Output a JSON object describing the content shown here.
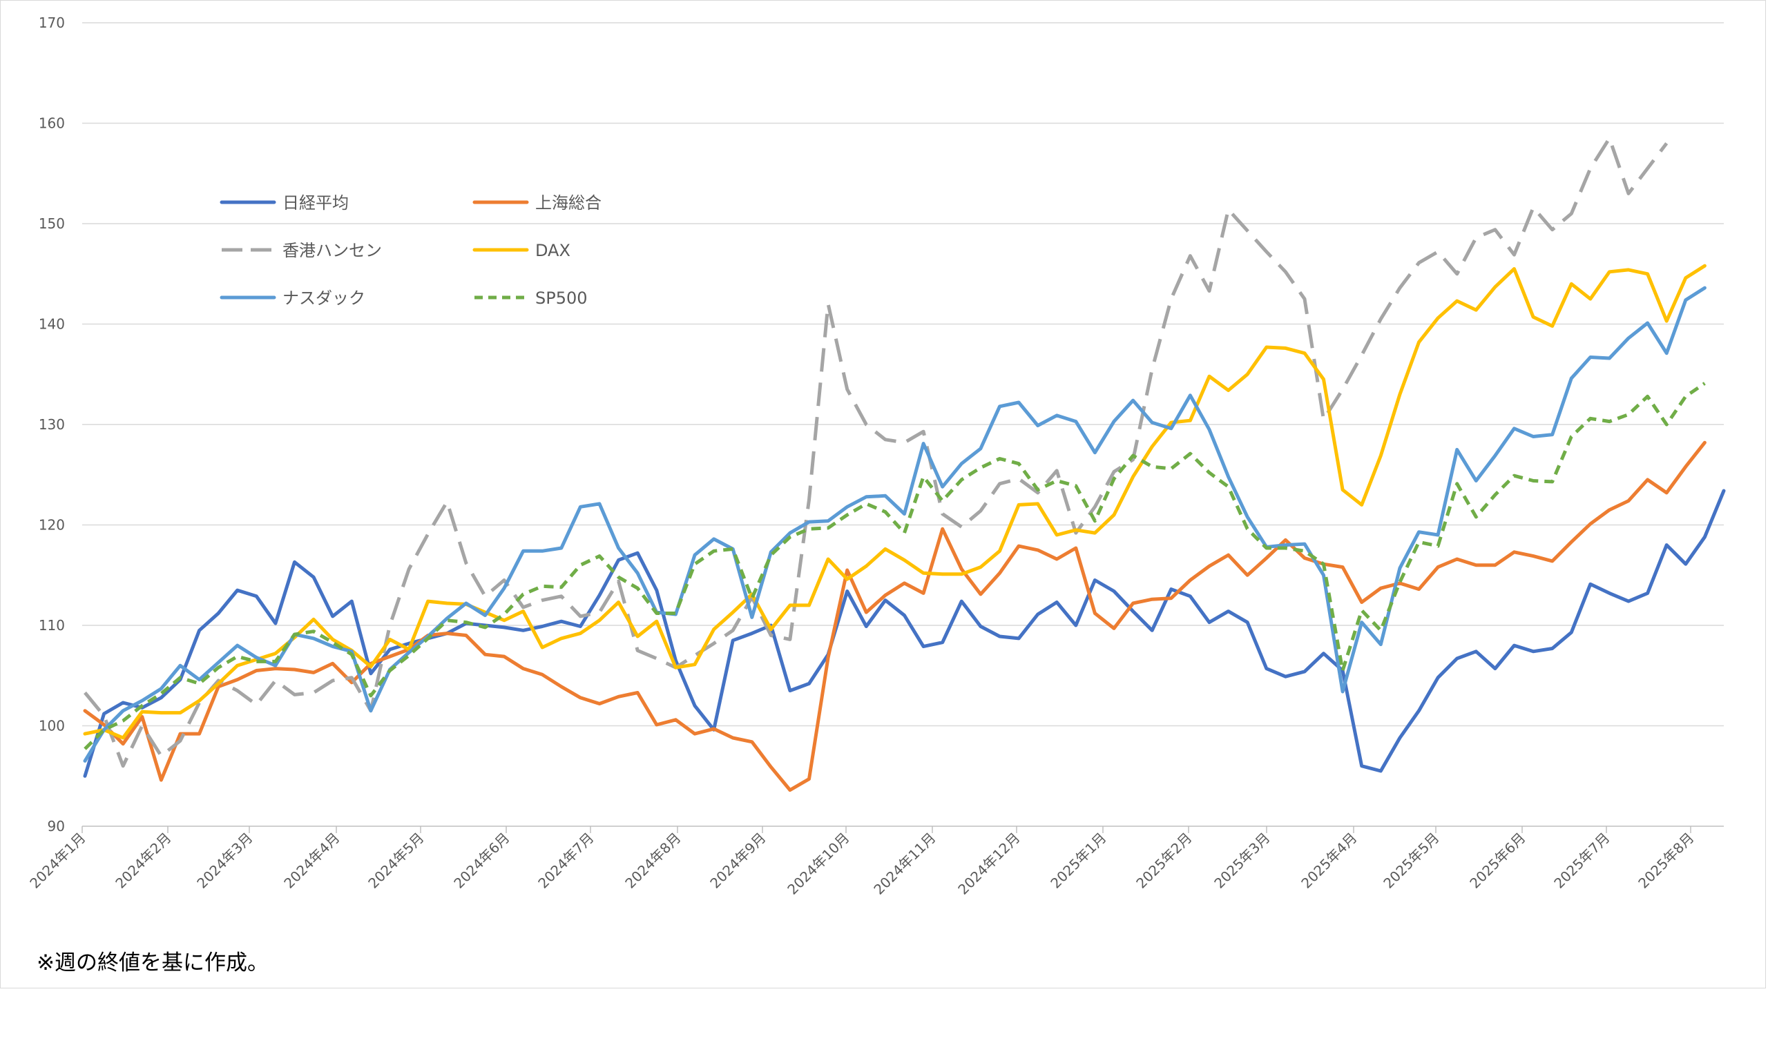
{
  "chart_data": {
    "type": "line",
    "title": "",
    "xlabel": "",
    "ylabel": "",
    "ylim": [
      90,
      170
    ],
    "yticks": [
      90,
      100,
      110,
      120,
      130,
      140,
      150,
      160,
      170
    ],
    "grid": true,
    "legend_position": "top-left",
    "xticks": [
      "2024年1月",
      "2024年2月",
      "2024年3月",
      "2024年4月",
      "2024年5月",
      "2024年6月",
      "2024年7月",
      "2024年8月",
      "2024年9月",
      "2024年10月",
      "2024年11月",
      "2024年12月",
      "2025年1月",
      "2025年2月",
      "2025年3月",
      "2025年4月",
      "2025年5月",
      "2025年6月",
      "2025年7月",
      "2025年8月"
    ],
    "series": [
      {
        "name": "日経平均",
        "color": "#4472C4",
        "dash": "solid",
        "values": [
          95.0,
          101.2,
          102.3,
          101.8,
          102.8,
          104.6,
          109.5,
          111.2,
          113.5,
          112.9,
          110.2,
          116.3,
          114.8,
          110.9,
          112.4,
          105.2,
          107.6,
          108.2,
          108.7,
          109.2,
          110.2,
          110.0,
          109.8,
          109.5,
          109.9,
          110.4,
          109.9,
          113.0,
          116.5,
          117.2,
          113.5,
          106.5,
          102.0,
          99.6,
          108.5,
          109.2,
          110.0,
          103.5,
          104.2,
          107.1,
          113.4,
          109.9,
          112.5,
          111.0,
          107.9,
          108.3,
          112.4,
          109.9,
          108.9,
          108.7,
          111.1,
          112.3,
          110.0,
          114.5,
          113.4,
          111.4,
          109.5,
          113.6,
          112.9,
          110.3,
          111.4,
          110.3,
          105.7,
          104.9,
          105.4,
          107.2,
          105.5,
          96.0,
          95.5,
          98.8,
          101.5,
          104.8,
          106.7,
          107.4,
          105.7,
          108.0,
          107.4,
          107.7,
          109.3,
          114.1,
          113.2,
          112.4,
          113.2,
          118.0,
          116.1,
          118.8,
          123.4
        ]
      },
      {
        "name": "上海総合",
        "color": "#ED7D31",
        "dash": "solid",
        "values": [
          101.5,
          100.1,
          98.2,
          100.9,
          94.6,
          99.2,
          99.2,
          103.9,
          104.6,
          105.5,
          105.7,
          105.6,
          105.3,
          106.2,
          104.3,
          106.2,
          106.9,
          107.6,
          109.0,
          109.2,
          109.0,
          107.1,
          106.9,
          105.7,
          105.1,
          103.9,
          102.8,
          102.2,
          102.9,
          103.3,
          100.1,
          100.6,
          99.2,
          99.7,
          98.8,
          98.4,
          95.9,
          93.6,
          94.7,
          106.8,
          115.5,
          111.3,
          113.0,
          114.2,
          113.2,
          119.6,
          115.6,
          113.1,
          115.2,
          117.9,
          117.5,
          116.6,
          117.7,
          111.2,
          109.7,
          112.2,
          112.6,
          112.7,
          114.5,
          115.9,
          117.0,
          115.0,
          116.7,
          118.5,
          116.7,
          116.1,
          115.8,
          112.3,
          113.7,
          114.2,
          113.6,
          115.8,
          116.6,
          116.0,
          116.0,
          117.3,
          116.9,
          116.4,
          118.3,
          120.1,
          121.5,
          122.4,
          124.5,
          123.2,
          125.8,
          128.2
        ]
      },
      {
        "name": "香港ハンセン",
        "color": "#A5A5A5",
        "dash": "dash-long",
        "values": [
          103.3,
          101.0,
          96.0,
          100.0,
          97.0,
          98.5,
          102.3,
          104.5,
          103.5,
          102.1,
          104.5,
          103.1,
          103.3,
          104.5,
          104.8,
          101.5,
          110.0,
          115.6,
          119.1,
          122.3,
          116.2,
          112.9,
          114.5,
          111.8,
          112.5,
          112.9,
          110.9,
          111.3,
          114.4,
          107.5,
          106.7,
          105.8,
          107.0,
          108.2,
          109.5,
          112.8,
          109.0,
          108.6,
          122.5,
          142.0,
          133.5,
          130.0,
          128.5,
          128.2,
          129.3,
          121.1,
          119.8,
          121.4,
          124.1,
          124.6,
          123.2,
          125.4,
          119.2,
          121.8,
          125.3,
          126.5,
          135.5,
          142.5,
          146.8,
          143.3,
          151.4,
          149.3,
          147.2,
          145.2,
          142.5,
          130.5,
          133.5,
          136.9,
          140.5,
          143.6,
          146.1,
          147.2,
          145.0,
          148.6,
          149.4,
          146.9,
          151.6,
          149.4,
          151.0,
          155.5,
          158.5,
          153.0,
          155.5,
          158.0
        ]
      },
      {
        "name": "DAX",
        "color": "#FFC000",
        "dash": "solid",
        "values": [
          99.2,
          99.6,
          98.8,
          101.4,
          101.3,
          101.3,
          102.5,
          104.2,
          106.0,
          106.6,
          107.2,
          108.8,
          110.6,
          108.6,
          107.5,
          105.9,
          108.6,
          107.6,
          112.4,
          112.2,
          112.1,
          111.3,
          110.5,
          111.4,
          107.8,
          108.7,
          109.2,
          110.5,
          112.3,
          108.9,
          110.4,
          105.8,
          106.1,
          109.6,
          111.3,
          113.1,
          109.6,
          112.0,
          112.0,
          116.6,
          114.6,
          115.9,
          117.6,
          116.5,
          115.2,
          115.1,
          115.1,
          115.8,
          117.4,
          122.0,
          122.1,
          119.0,
          119.5,
          119.2,
          121.0,
          124.8,
          127.8,
          130.2,
          130.4,
          134.8,
          133.4,
          135.0,
          137.7,
          137.6,
          137.1,
          134.5,
          123.5,
          122.0,
          126.9,
          133.0,
          138.2,
          140.6,
          142.3,
          141.4,
          143.7,
          145.5,
          140.7,
          139.8,
          144.0,
          142.5,
          145.2,
          145.4,
          145.0,
          140.3,
          144.6,
          145.8
        ]
      },
      {
        "name": "ナスダック",
        "color": "#5B9BD5",
        "dash": "solid",
        "values": [
          96.5,
          99.6,
          101.5,
          102.5,
          103.7,
          106.0,
          104.6,
          106.3,
          108.0,
          106.8,
          106.0,
          109.1,
          108.7,
          107.9,
          107.4,
          101.5,
          105.6,
          107.3,
          108.9,
          110.7,
          112.2,
          111.0,
          113.7,
          117.4,
          117.4,
          117.7,
          121.8,
          122.1,
          117.7,
          115.2,
          111.3,
          111.1,
          117.0,
          118.6,
          117.6,
          110.8,
          117.3,
          119.2,
          120.3,
          120.4,
          121.8,
          122.8,
          122.9,
          121.1,
          128.1,
          123.8,
          126.1,
          127.6,
          131.8,
          132.2,
          129.9,
          130.9,
          130.3,
          127.2,
          130.3,
          132.4,
          130.2,
          129.6,
          132.9,
          129.5,
          124.8,
          120.8,
          117.8,
          118.0,
          118.1,
          115.0,
          103.4,
          110.3,
          108.1,
          115.7,
          119.3,
          119.0,
          127.5,
          124.4,
          126.9,
          129.6,
          128.8,
          129.0,
          134.6,
          136.7,
          136.6,
          138.6,
          140.1,
          137.1,
          142.4,
          143.6
        ]
      },
      {
        "name": "SP500",
        "color": "#70AD47",
        "dash": "dash-short",
        "values": [
          97.7,
          99.6,
          100.5,
          102.0,
          103.2,
          104.8,
          104.2,
          105.8,
          106.9,
          106.4,
          106.4,
          109.1,
          109.4,
          108.3,
          107.1,
          103.0,
          105.5,
          107.0,
          108.7,
          110.5,
          110.3,
          109.8,
          111.1,
          113.1,
          113.9,
          113.8,
          116.0,
          116.9,
          114.8,
          113.7,
          111.2,
          111.2,
          116.1,
          117.4,
          117.6,
          112.7,
          117.0,
          118.8,
          119.6,
          119.7,
          121.0,
          122.1,
          121.3,
          119.2,
          124.8,
          122.4,
          124.5,
          125.7,
          126.6,
          126.1,
          123.5,
          124.4,
          123.9,
          120.4,
          124.6,
          126.9,
          125.8,
          125.6,
          127.1,
          125.2,
          123.8,
          119.6,
          117.7,
          117.7,
          117.4,
          116.1,
          105.5,
          111.5,
          109.5,
          114.3,
          118.3,
          117.9,
          124.1,
          120.8,
          123.0,
          124.9,
          124.4,
          124.3,
          128.8,
          130.6,
          130.3,
          131.0,
          132.8,
          130.0,
          132.8,
          134.1
        ]
      }
    ],
    "annotation": "※週の終値を基に作成。"
  }
}
